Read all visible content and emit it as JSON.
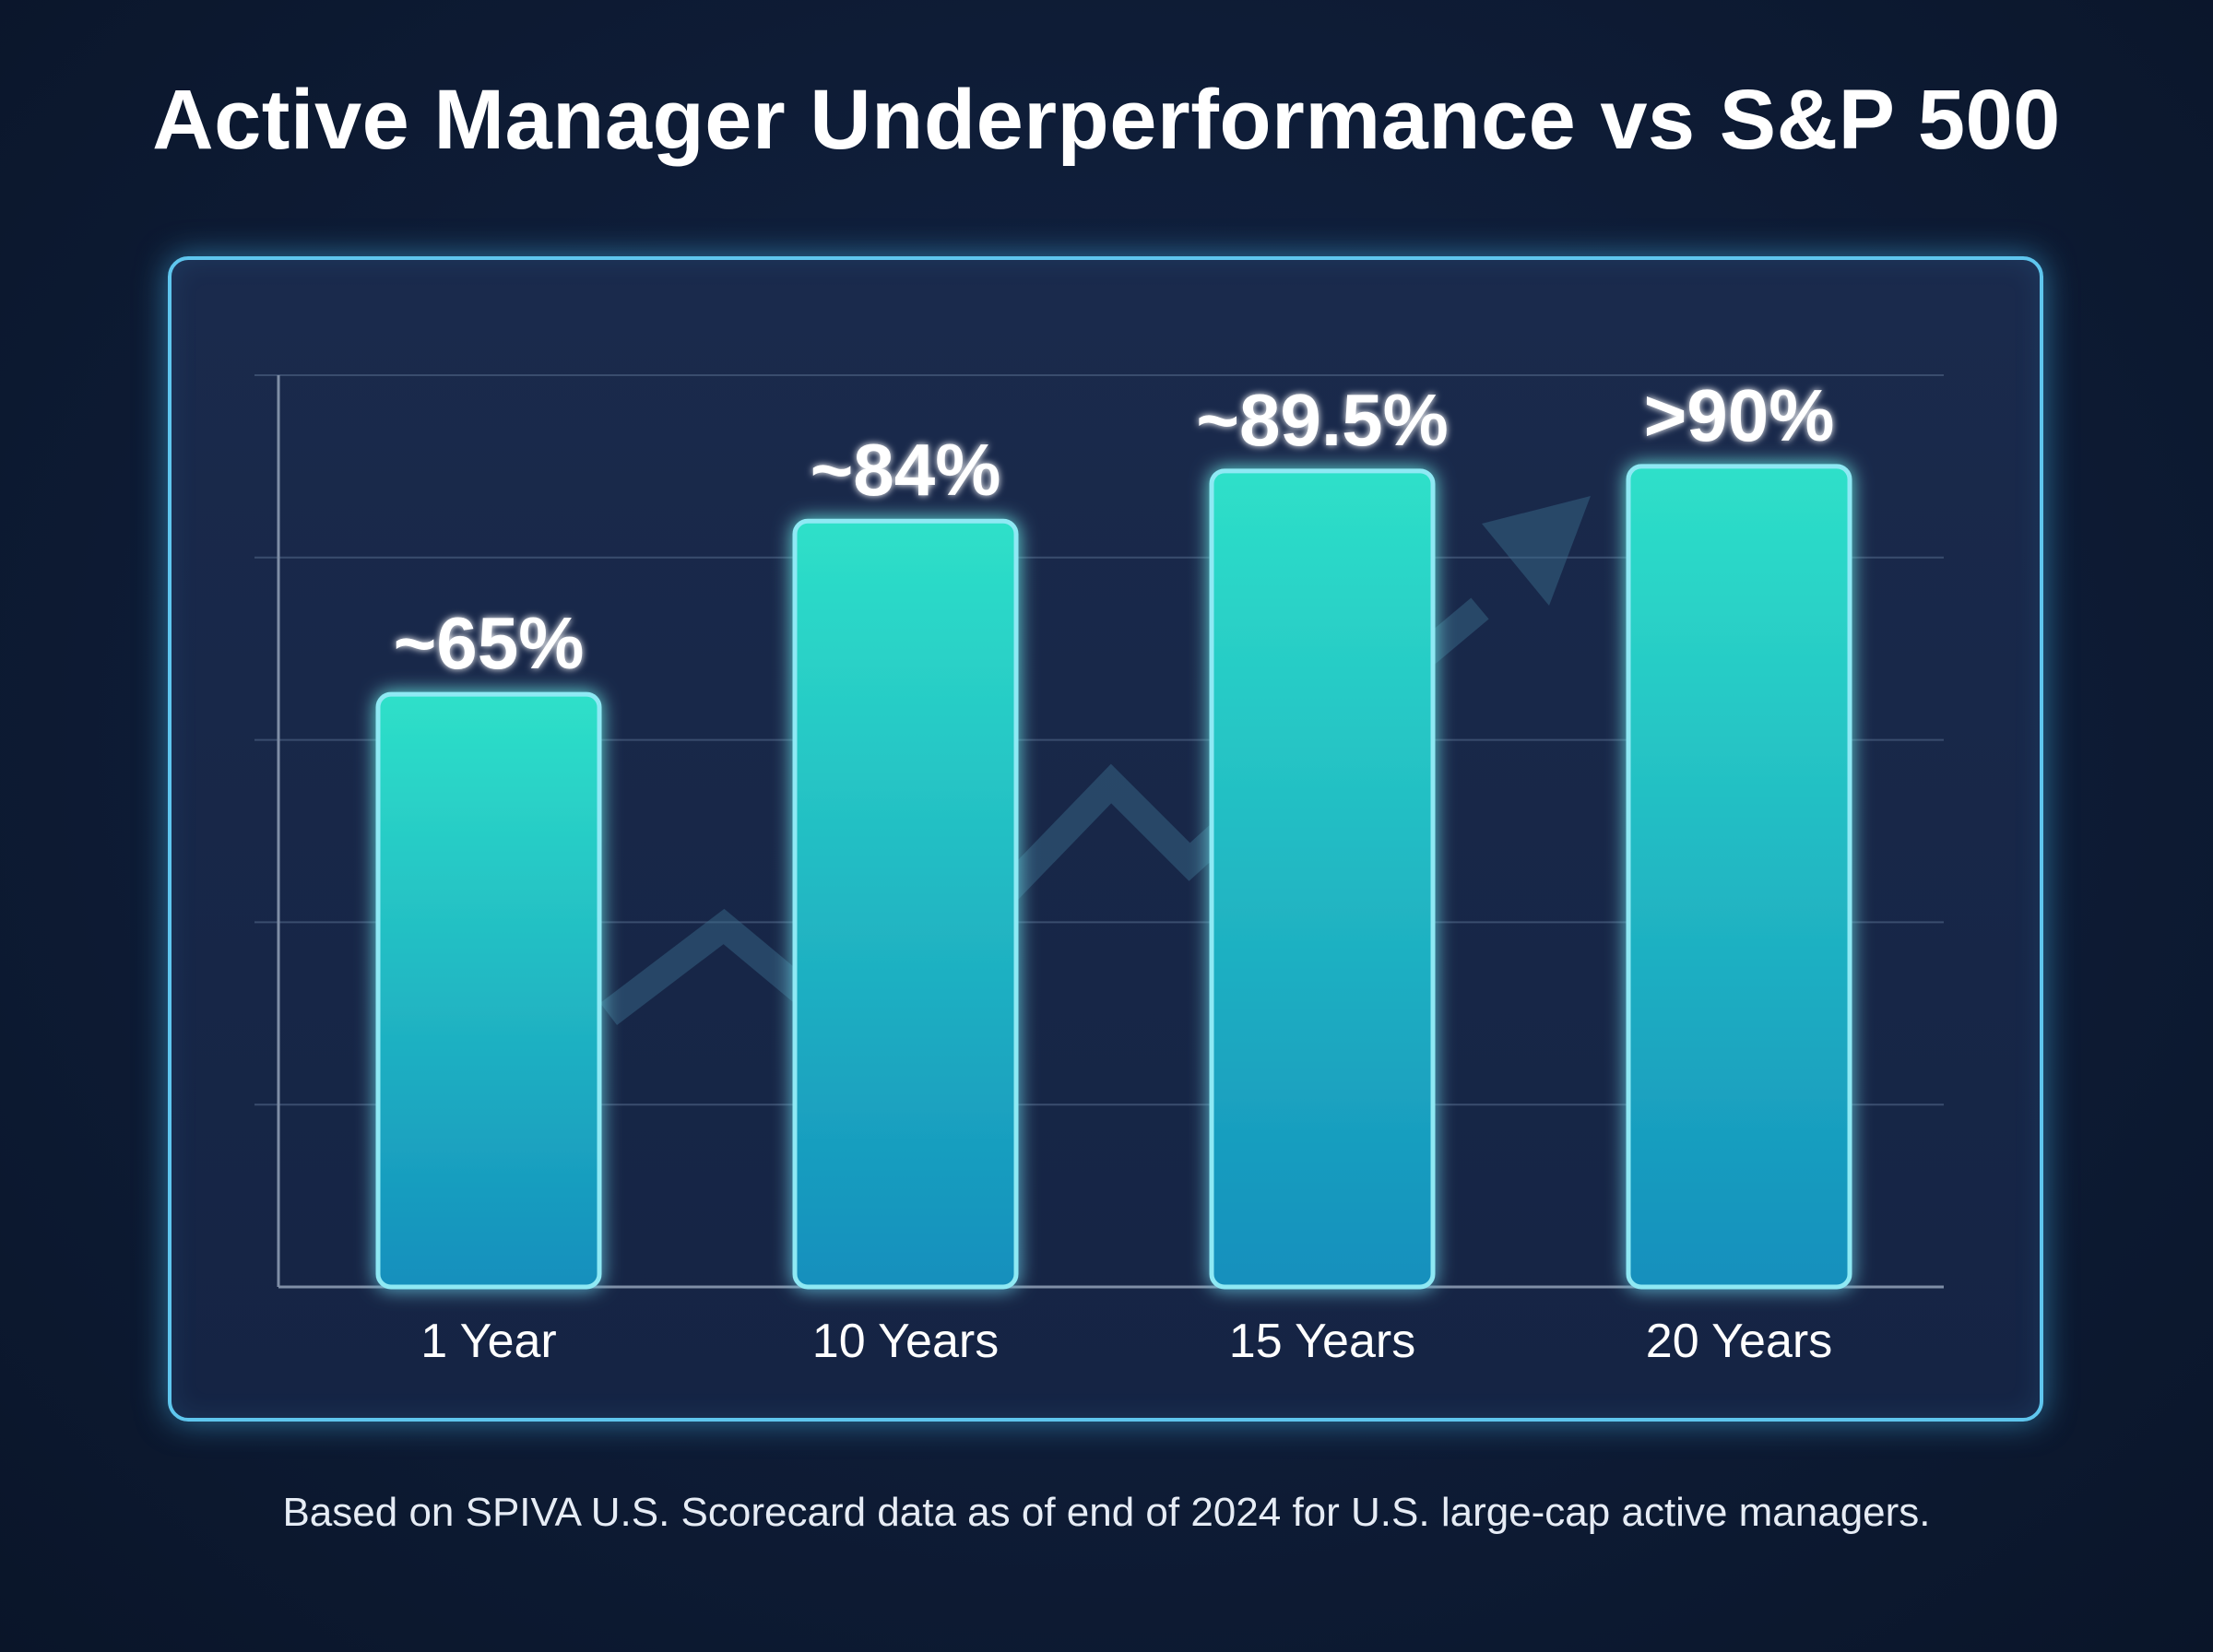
{
  "chart_title": "Active Manager Underperformance vs S&P 500",
  "footnote": "Based on SPIVA U.S. Scorecard data as of end of 2024 for U.S. large-cap active managers.",
  "colors": {
    "background": "#0e1c36",
    "panel_border": "#5fc6ee",
    "bar_top": "#2ee0c9",
    "bar_bottom": "#148fbd",
    "text": "#ffffff"
  },
  "chart_data": {
    "type": "bar",
    "title": "Active Manager Underperformance vs S&P 500",
    "categories": [
      "1 Year",
      "10 Years",
      "15 Years",
      "20 Years"
    ],
    "values": [
      65,
      84,
      89.5,
      90
    ],
    "data_labels": [
      "~65%",
      "~84%",
      "~89.5%",
      ">90%"
    ],
    "ylim": [
      0,
      100
    ],
    "y_gridlines": [
      20,
      40,
      60,
      80,
      100
    ],
    "grid": true,
    "xlabel": "",
    "ylabel": "",
    "decoration": "faint upward zigzag trend arrow behind bars"
  }
}
